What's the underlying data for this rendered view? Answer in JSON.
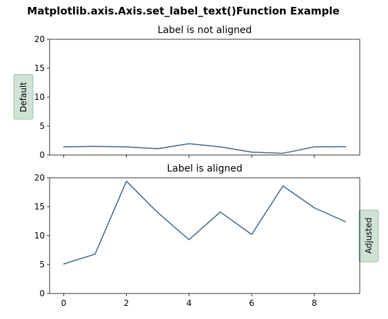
{
  "figure": {
    "suptitle": "Matplotlib.axis.Axis.set_label_text()Function Example"
  },
  "colors": {
    "line": "#4a6f8f",
    "label_box_fill": "#cfe3d4",
    "label_box_edge": "#9fbfa8"
  },
  "chart_data": [
    {
      "type": "line",
      "title": "Label is not aligned",
      "ylabel": "Default",
      "ylabel_side": "left",
      "x": [
        0,
        1,
        2,
        3,
        4,
        5,
        6,
        7,
        8,
        9
      ],
      "series": [
        {
          "values": [
            1.4,
            1.5,
            1.4,
            1.1,
            1.95,
            1.4,
            0.5,
            0.3,
            1.4,
            1.45
          ]
        }
      ],
      "xlim": [
        -0.45,
        9.45
      ],
      "ylim": [
        0,
        20
      ],
      "xticks": [
        0,
        2,
        4,
        6,
        8
      ],
      "yticks": [
        0,
        5,
        10,
        15,
        20
      ],
      "ytick_labels": [
        "0",
        "5",
        "10",
        "15",
        "20"
      ],
      "xtick_labels_visible": false,
      "grid": false
    },
    {
      "type": "line",
      "title": "Label is aligned",
      "ylabel": "Adjusted",
      "ylabel_side": "right",
      "x": [
        0,
        1,
        2,
        3,
        4,
        5,
        6,
        7,
        8,
        9
      ],
      "series": [
        {
          "values": [
            5.1,
            6.8,
            19.4,
            14.0,
            9.3,
            14.1,
            10.2,
            18.6,
            14.8,
            12.4
          ]
        }
      ],
      "xlim": [
        -0.45,
        9.45
      ],
      "ylim": [
        0,
        20
      ],
      "xticks": [
        0,
        2,
        4,
        6,
        8
      ],
      "xtick_labels": [
        "0",
        "2",
        "4",
        "6",
        "8"
      ],
      "yticks": [
        0,
        5,
        10,
        15,
        20
      ],
      "ytick_labels": [
        "0",
        "5",
        "10",
        "15",
        "20"
      ],
      "xtick_labels_visible": true,
      "grid": false
    }
  ]
}
